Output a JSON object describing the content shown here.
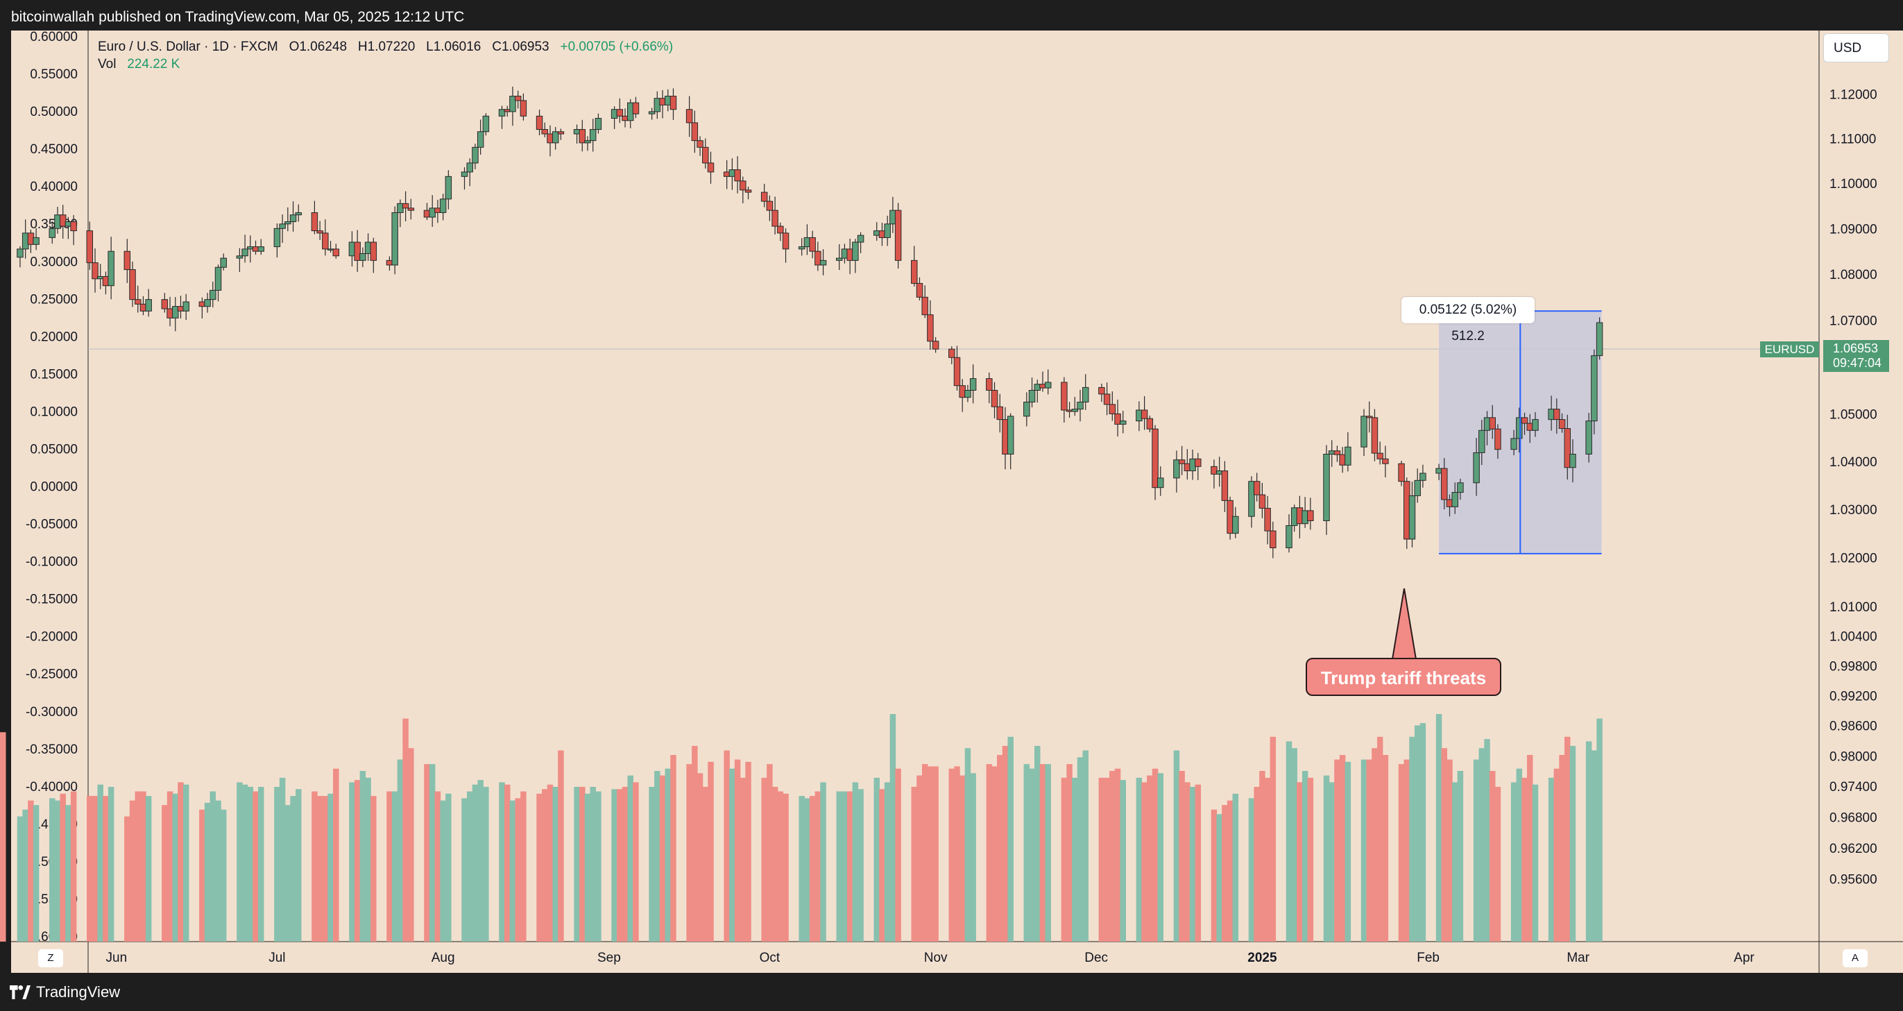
{
  "header": {
    "published_text": "bitcoinwallah published on TradingView.com, Mar 05, 2025 12:12 UTC"
  },
  "legend": {
    "title": "Euro / U.S. Dollar · 1D · FXCM",
    "open": "O1.06248",
    "high": "H1.07220",
    "low": "L1.06016",
    "close": "C1.06953",
    "change": "+0.00705 (+0.66%)",
    "vol_label": "Vol",
    "vol_value": "224.22 K"
  },
  "currency_button": "USD",
  "last_price": {
    "symbol": "EURUSD",
    "price": "1.06953",
    "countdown": "09:47:04"
  },
  "measure": {
    "label": "0.05122 (5.02%) 512.2",
    "from": 1.0208,
    "to": 1.072
  },
  "annotation": {
    "text": "Trump tariff  threats"
  },
  "bottom_bar": {
    "logo_text": "TradingView",
    "z_button": "Z",
    "a_button": "A"
  },
  "colors": {
    "up": "#5b9e7a",
    "down": "#d9554b",
    "vol_up": "#88c0ae",
    "vol_down": "#ef8e86",
    "background": "#f2e0cf",
    "measure_fill": "#c9c8dc",
    "measure_line": "#2962ff"
  },
  "chart_data": {
    "type": "candlestick",
    "symbol": "EURUSD",
    "timeframe": "1D",
    "price_axis_ticks": [
      "1.12000",
      "1.11000",
      "1.10000",
      "1.09000",
      "1.08000",
      "1.07000",
      "1.06000",
      "1.05000",
      "1.04000",
      "1.03000",
      "1.02000",
      "1.01000",
      "1.00400",
      "0.99800",
      "0.99200",
      "0.98600",
      "0.98000",
      "0.97400",
      "0.96800",
      "0.96200",
      "0.95600"
    ],
    "left_axis_ticks": [
      "0.60000",
      "0.55000",
      "0.50000",
      "0.45000",
      "0.40000",
      "0.35000",
      "0.30000",
      "0.25000",
      "0.20000",
      "0.15000",
      "0.10000",
      "0.05000",
      "0.00000",
      "-0.05000",
      "-0.10000",
      "-0.15000",
      "-0.20000",
      "-0.25000",
      "-0.30000",
      "-0.35000",
      "-0.40000",
      "-0.45000",
      "-0.50000",
      "-0.55000",
      "-0.60000"
    ],
    "time_axis_labels": [
      {
        "label": "Jun",
        "date": "2024-06-01"
      },
      {
        "label": "Jul",
        "date": "2024-07-01"
      },
      {
        "label": "Aug",
        "date": "2024-08-01"
      },
      {
        "label": "Sep",
        "date": "2024-09-01"
      },
      {
        "label": "Oct",
        "date": "2024-10-01"
      },
      {
        "label": "Nov",
        "date": "2024-11-01"
      },
      {
        "label": "Dec",
        "date": "2024-12-01"
      },
      {
        "label": "2025",
        "date": "2025-01-01",
        "bold": true
      },
      {
        "label": "Feb",
        "date": "2025-02-01"
      },
      {
        "label": "Mar",
        "date": "2025-03-01"
      },
      {
        "label": "Apr",
        "date": "2025-04-01"
      }
    ],
    "closes": [
      1.0855,
      1.089,
      1.0865,
      1.088,
      1.09,
      1.093,
      1.0905,
      1.0915,
      1.0895,
      1.0825,
      1.079,
      1.0795,
      1.0775,
      1.085,
      1.081,
      1.0745,
      1.0735,
      1.072,
      1.0745,
      1.0725,
      1.0705,
      1.073,
      1.072,
      1.074,
      1.073,
      1.0745,
      1.0765,
      1.0815,
      1.0835,
      1.084,
      1.0855,
      1.086,
      1.085,
      1.086,
      1.09,
      1.091,
      1.0915,
      1.093,
      1.0935,
      1.0895,
      1.089,
      1.0855,
      1.0855,
      1.084,
      1.087,
      1.083,
      1.0845,
      1.087,
      1.083,
      1.082,
      1.0935,
      1.0955,
      1.0945,
      1.094,
      1.0925,
      1.0945,
      1.0935,
      1.0965,
      1.1015,
      1.1025,
      1.1045,
      1.108,
      1.1115,
      1.115,
      1.1165,
      1.116,
      1.1195,
      1.1185,
      1.115,
      1.112,
      1.111,
      1.109,
      1.1115,
      1.111,
      1.112,
      1.109,
      1.1095,
      1.112,
      1.1145,
      1.1165,
      1.115,
      1.114,
      1.118,
      1.1155,
      1.116,
      1.119,
      1.1175,
      1.1195,
      1.1165,
      1.1135,
      1.1095,
      1.108,
      1.1045,
      1.1025,
      1.1015,
      1.103,
      1.1005,
      1.0985,
      1.098,
      1.096,
      1.094,
      1.0905,
      1.089,
      1.0855,
      1.086,
      1.088,
      1.085,
      1.082,
      1.083,
      1.0835,
      1.0855,
      1.083,
      1.087,
      1.0885,
      1.0895,
      1.088,
      1.091,
      1.094,
      1.083,
      1.078,
      1.075,
      1.0712,
      1.0655,
      1.0638,
      1.062,
      1.056,
      1.0535,
      1.055,
      1.0575,
      1.055,
      1.0515,
      1.0488,
      1.0415,
      1.0495,
      1.0525,
      1.055,
      1.0563,
      1.0555,
      1.0567,
      1.0508,
      1.0505,
      1.051,
      1.0525,
      1.0556,
      1.0542,
      1.052,
      1.05,
      1.0478,
      1.0485,
      1.0508,
      1.049,
      1.0468,
      1.0345,
      1.0365,
      1.0403,
      1.0395,
      1.038,
      1.0405,
      1.0389,
      1.0373,
      1.038,
      1.0318,
      1.025,
      1.0285,
      1.0358,
      1.033,
      1.0302,
      1.0255,
      1.022,
      1.0266,
      1.0303,
      1.027,
      1.0297,
      1.0276,
      1.0415,
      1.0422,
      1.0414,
      1.0392,
      1.043,
      1.0495,
      1.0492,
      1.0417,
      1.0405,
      1.0395,
      1.0358,
      1.0238,
      1.0328,
      1.036,
      1.0375,
      1.0385,
      1.032,
      1.0305,
      1.0335,
      1.0355,
      1.0418,
      1.0465,
      1.0492,
      1.0468,
      1.0425,
      1.0448,
      1.0492,
      1.048,
      1.0465,
      1.0488,
      1.051,
      1.0488,
      1.0469,
      1.0387,
      1.0415,
      1.0485,
      1.0624,
      1.0695
    ],
    "volumes_relative": [
      0.55,
      0.58,
      0.62,
      0.6,
      0.63,
      0.62,
      0.65,
      0.6,
      0.66,
      0.64,
      0.64,
      0.69,
      0.64,
      0.68,
      0.55,
      0.62,
      0.66,
      0.66,
      0.64,
      0.6,
      0.66,
      0.65,
      0.7,
      0.69,
      0.58,
      0.61,
      0.66,
      0.62,
      0.58,
      0.7,
      0.69,
      0.68,
      0.66,
      0.68,
      0.68,
      0.72,
      0.6,
      0.64,
      0.67,
      0.66,
      0.64,
      0.64,
      0.65,
      0.76,
      0.7,
      0.71,
      0.75,
      0.72,
      0.64,
      0.66,
      0.66,
      0.8,
      0.98,
      0.85,
      0.78,
      0.78,
      0.66,
      0.62,
      0.65,
      0.63,
      0.66,
      0.69,
      0.71,
      0.68,
      0.7,
      0.69,
      0.62,
      0.63,
      0.66,
      0.65,
      0.67,
      0.69,
      0.68,
      0.84,
      0.68,
      0.68,
      0.65,
      0.68,
      0.66,
      0.67,
      0.67,
      0.68,
      0.73,
      0.7,
      0.68,
      0.75,
      0.73,
      0.76,
      0.82,
      0.78,
      0.86,
      0.74,
      0.68,
      0.79,
      0.84,
      0.76,
      0.8,
      0.72,
      0.79,
      0.72,
      0.78,
      0.68,
      0.66,
      0.65,
      0.64,
      0.63,
      0.64,
      0.66,
      0.7,
      0.66,
      0.66,
      0.66,
      0.7,
      0.67,
      0.72,
      0.67,
      0.7,
      1.0,
      0.76,
      0.68,
      0.73,
      0.78,
      0.77,
      0.77,
      0.76,
      0.77,
      0.73,
      0.85,
      0.74,
      0.78,
      0.77,
      0.82,
      0.86,
      0.9,
      0.78,
      0.76,
      0.86,
      0.78,
      0.78,
      0.72,
      0.78,
      0.72,
      0.81,
      0.84,
      0.72,
      0.72,
      0.75,
      0.76,
      0.71,
      0.72,
      0.7,
      0.73,
      0.76,
      0.74,
      0.84,
      0.75,
      0.7,
      0.68,
      0.69,
      0.58,
      0.56,
      0.6,
      0.62,
      0.65,
      0.63,
      0.68,
      0.75,
      0.72,
      0.9,
      0.88,
      0.85,
      0.7,
      0.75,
      0.72,
      0.73,
      0.7,
      0.8,
      0.82,
      0.79,
      0.8,
      0.8,
      0.85,
      0.9,
      0.82,
      0.78,
      0.8,
      0.9,
      0.95,
      0.96,
      1.0,
      0.85,
      0.8,
      0.7,
      0.75,
      0.8,
      0.85,
      0.89,
      0.75,
      0.68,
      0.7,
      0.76,
      0.72,
      0.82,
      0.69,
      0.72,
      0.76,
      0.82,
      0.9,
      0.86,
      0.88,
      0.84,
      0.98,
      0.9,
      0.82,
      0.92
    ],
    "first_date": "2024-05-28",
    "last_date": "2025-03-05",
    "grid": false
  }
}
